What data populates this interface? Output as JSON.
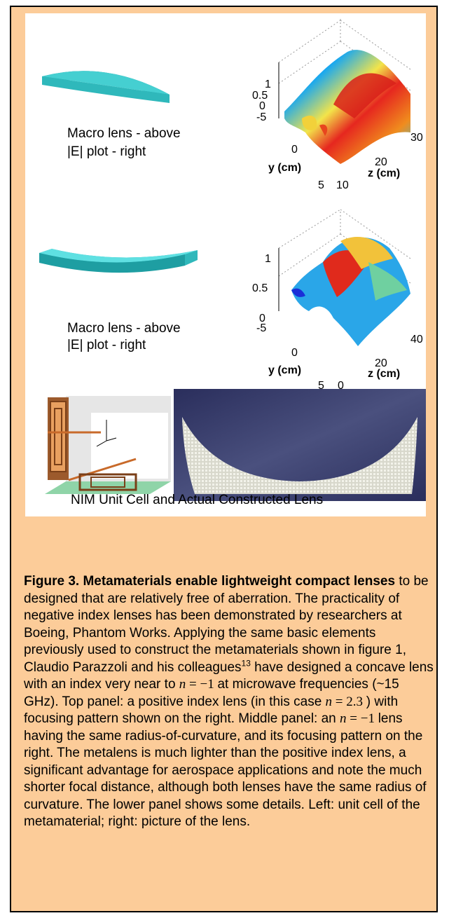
{
  "figure": {
    "top_plot": {
      "lens_caption_line1": "Macro lens - above",
      "lens_caption_line2": "|E| plot - right",
      "z_ticks": [
        "1",
        "0.5",
        "0",
        "-5"
      ],
      "y_ticks": [
        "0",
        "5"
      ],
      "x_ticks": [
        "10",
        "20",
        "30"
      ],
      "y_axis_label": "y (cm)",
      "x_axis_label": "z (cm)"
    },
    "middle_plot": {
      "lens_caption_line1": "Macro lens - above",
      "lens_caption_line2": "|E| plot - right",
      "z_ticks": [
        "1",
        "0.5",
        "0",
        "-5"
      ],
      "y_ticks": [
        "0",
        "5"
      ],
      "x_ticks": [
        "0",
        "20",
        "40"
      ],
      "y_axis_label": "y (cm)",
      "x_axis_label": "z (cm)"
    },
    "bottom_caption": "NIM Unit Cell and Actual Constructed Lens"
  },
  "colors": {
    "frame_bg": "#fccc99",
    "lens_teal": "#2fc1c4",
    "photo_bg": "#3a3f6a"
  },
  "text": {
    "bold_lead": "Figure 3. Metamaterials enable lightweight compact lenses",
    "p1": " to be designed that are relatively free of aberration. The practicality of negative index lenses has been demonstrated by researchers at Boeing, Phantom Works.  Applying the same basic elements previously used to construct the metamaterials shown in figure 1, Claudio Parazzoli and his colleagues",
    "ref": "13",
    "p2": " have designed a concave lens with an index very near to ",
    "p3": " at microwave frequencies (~15 GHz).  Top panel: a positive index lens (in this case ",
    "p4": ") with focusing pattern shown on the right. Middle panel: an ",
    "p5": " lens having the same radius-of-curvature, and its focusing pattern on the right. The metalens is much lighter than the positive index lens, a significant advantage for aerospace applications and note the much shorter focal distance, although both lenses have the same radius of curvature. The lower panel shows some details. Left: unit cell of the metamaterial; right: picture of the lens.",
    "math_n": "n",
    "math_eq_neg1": " = −1 ",
    "math_eq_23": " = 2.3 "
  }
}
